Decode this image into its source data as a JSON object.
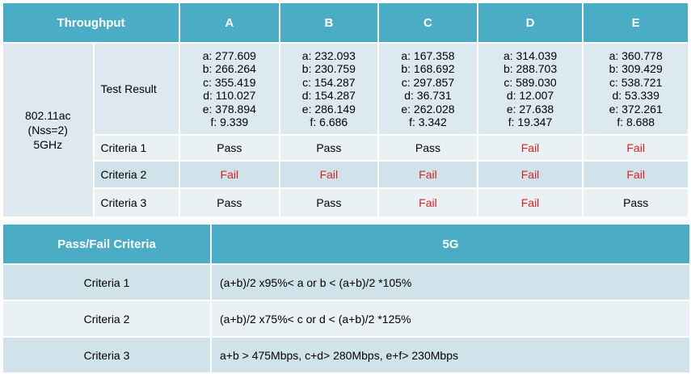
{
  "throughput_table": {
    "header": {
      "corner": "Throughput",
      "columns": [
        "A",
        "B",
        "C",
        "D",
        "E"
      ]
    },
    "technology": {
      "line1": "802.11ac",
      "line2": "(Nss=2)",
      "line3": "5GHz"
    },
    "test_result": {
      "label": "Test Result",
      "values": [
        [
          "a: 277.609",
          "b: 266.264",
          "c: 355.419",
          "d: 110.027",
          "e: 378.894",
          "f: 9.339"
        ],
        [
          "a: 232.093",
          "b: 230.759",
          "c: 154.287",
          "d: 154.287",
          "e: 286.149",
          "f: 6.686"
        ],
        [
          "a: 167.358",
          "b: 168.692",
          "c: 297.857",
          "d: 36.731",
          "e: 262.028",
          "f: 3.342"
        ],
        [
          "a: 314.039",
          "b: 288.703",
          "c: 589.030",
          "d: 12.007",
          "e: 27.638",
          "f: 19.347"
        ],
        [
          "a: 360.778",
          "b: 309.429",
          "c: 538.721",
          "d: 53.339",
          "e: 372.261",
          "f: 8.688"
        ]
      ]
    },
    "criteria_rows": [
      {
        "label": "Criteria 1",
        "results": [
          "Pass",
          "Pass",
          "Pass",
          "Fail",
          "Fail"
        ]
      },
      {
        "label": "Criteria 2",
        "results": [
          "Fail",
          "Fail",
          "Fail",
          "Fail",
          "Fail"
        ]
      },
      {
        "label": "Criteria 3",
        "results": [
          "Pass",
          "Pass",
          "Fail",
          "Fail",
          "Pass"
        ]
      }
    ],
    "colors": {
      "header": "#4bacc6",
      "fail": "#e02020",
      "pass": "#000000"
    }
  },
  "criteria_table": {
    "header": {
      "col1": "Pass/Fail Criteria",
      "col2": "5G"
    },
    "rows": [
      {
        "name": "Criteria 1",
        "desc": "(a+b)/2 x95%< a or b < (a+b)/2 *105%"
      },
      {
        "name": "Criteria 2",
        "desc": "(a+b)/2 x75%< c or d < (a+b)/2 *125%"
      },
      {
        "name": "Criteria 3",
        "desc": "a+b > 475Mbps, c+d> 280Mbps, e+f> 230Mbps"
      }
    ]
  }
}
